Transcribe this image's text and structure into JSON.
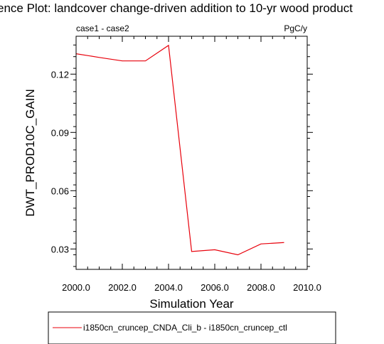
{
  "chart_data": {
    "type": "line",
    "title": "ence Plot: landcover change-driven addition to 10-yr wood product",
    "left_label": "case1 - case2",
    "right_label": "PgC/y",
    "xlabel": "Simulation Year",
    "ylabel": "DWT_PROD10C_GAIN",
    "xlim": [
      2000,
      2010
    ],
    "ylim": [
      0.0195,
      0.1395
    ],
    "xticks": [
      2000,
      2002,
      2004,
      2006,
      2008,
      2010
    ],
    "xtick_labels": [
      "2000.0",
      "2002.0",
      "2004.0",
      "2006.0",
      "2008.0",
      "2010.0"
    ],
    "yticks": [
      0.03,
      0.06,
      0.09,
      0.12
    ],
    "ytick_labels": [
      "0.03",
      "0.06",
      "0.09",
      "0.12"
    ],
    "grid": false,
    "legend_position": "bottom",
    "series": [
      {
        "name": "i1850cn_cruncep_CNDA_Cli_b - i1850cn_cruncep_ctl",
        "color": "#e8000b",
        "x": [
          2000,
          2001,
          2002,
          2003,
          2004,
          2005,
          2006,
          2007,
          2008,
          2009
        ],
        "y": [
          0.1305,
          0.1286,
          0.1268,
          0.1268,
          0.1348,
          0.0287,
          0.0296,
          0.027,
          0.0326,
          0.0333
        ]
      }
    ]
  }
}
